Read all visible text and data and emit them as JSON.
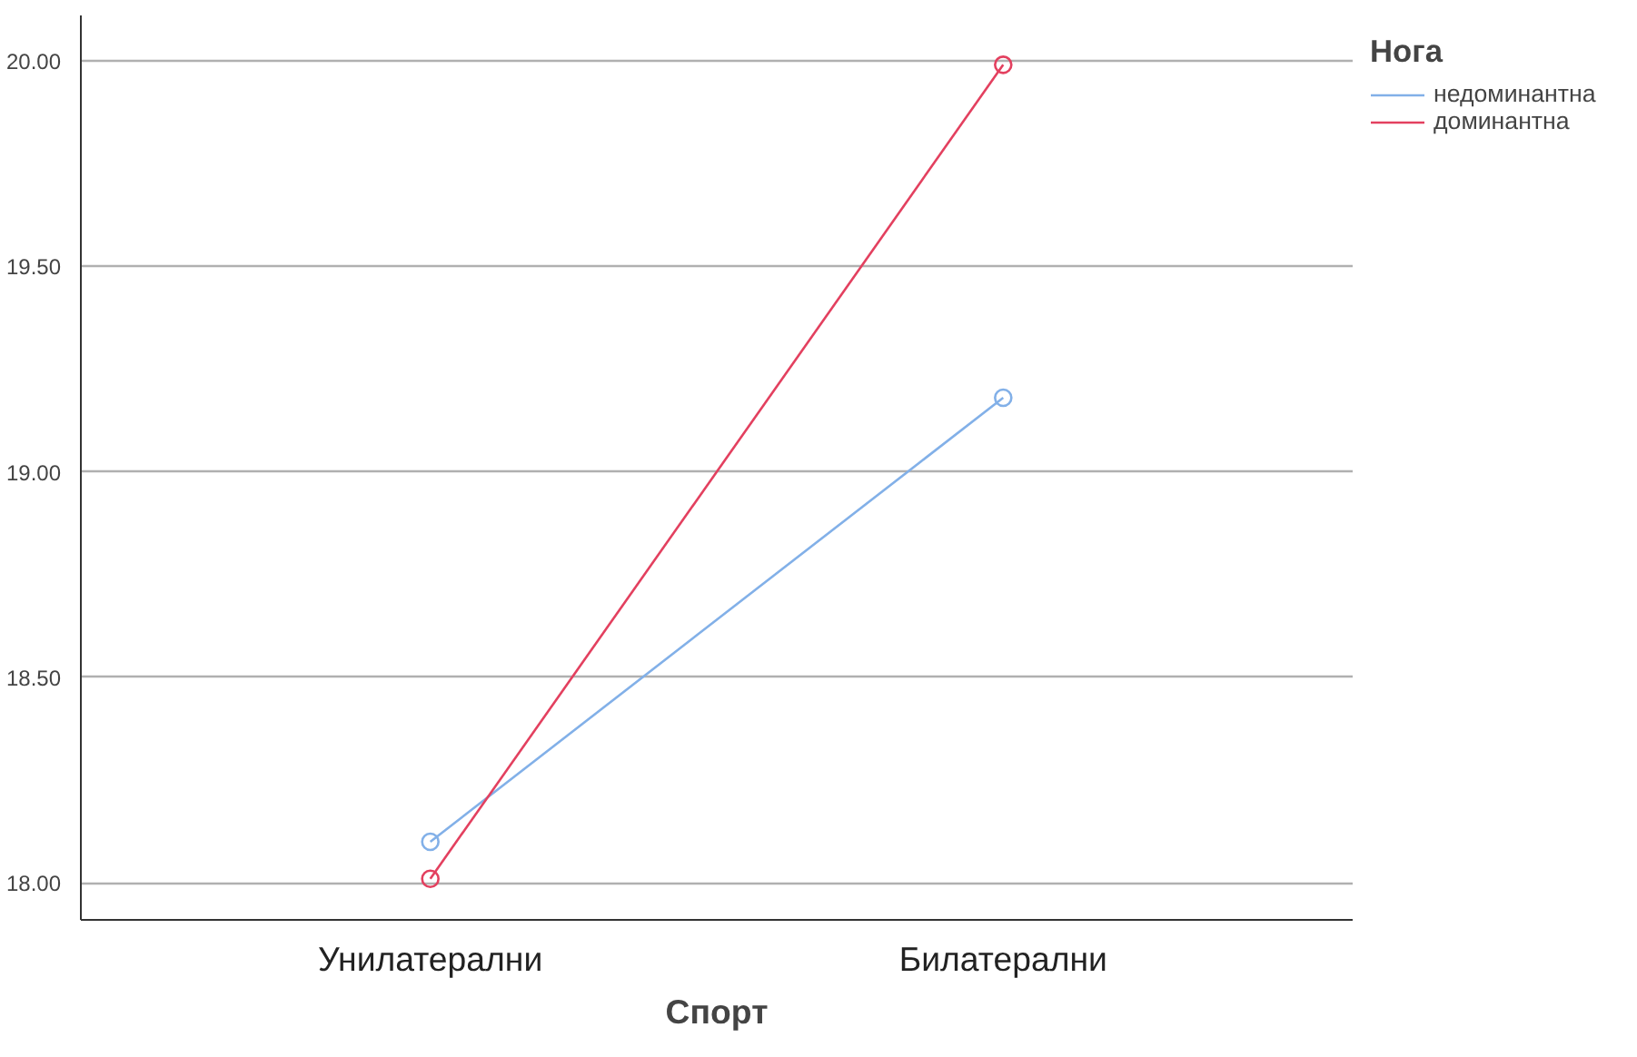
{
  "chart_data": {
    "type": "line",
    "xlabel": "Спорт",
    "legend_title": "Нога",
    "categories": [
      "Унилатерални",
      "Билатерални"
    ],
    "series": [
      {
        "name": "недоминантна",
        "color": "#82b0e8",
        "values": [
          18.1,
          19.18
        ]
      },
      {
        "name": "доминантна",
        "color": "#e3405f",
        "values": [
          18.01,
          19.99
        ]
      }
    ],
    "ylim": [
      17.91,
      20.11
    ],
    "yticks": [
      {
        "value": 18,
        "label": "18.00"
      },
      {
        "value": 18.5,
        "label": "18.50"
      },
      {
        "value": 19,
        "label": "19.00"
      },
      {
        "value": 19.5,
        "label": "19.50"
      },
      {
        "value": 20,
        "label": "20.00"
      }
    ],
    "grid": "y",
    "legend": "top right",
    "marker": "circle",
    "line_style": "solid"
  }
}
